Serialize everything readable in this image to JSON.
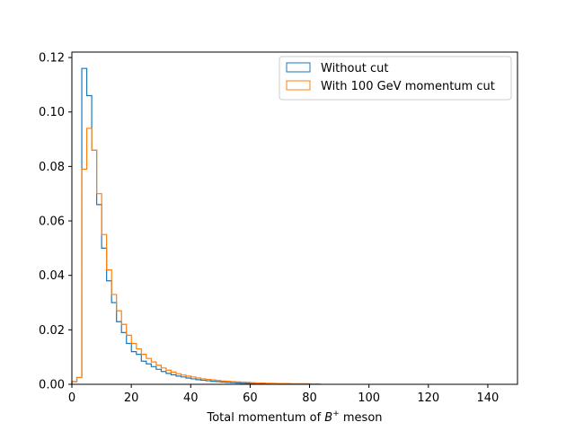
{
  "chart_data": {
    "type": "histogram-step",
    "xlabel_prefix": "Total momentum of ",
    "xlabel_symbol": "B",
    "xlabel_superscript": "+",
    "xlabel_suffix": " meson",
    "ylabel": "",
    "xlim": [
      0,
      150
    ],
    "ylim": [
      0,
      0.122
    ],
    "xticks": [
      0,
      20,
      40,
      60,
      80,
      100,
      120,
      140
    ],
    "yticks": [
      0.0,
      0.02,
      0.04,
      0.06,
      0.08,
      0.1,
      0.12
    ],
    "ytick_labels": [
      "0.00",
      "0.02",
      "0.04",
      "0.06",
      "0.08",
      "0.10",
      "0.12"
    ],
    "grid": false,
    "legend_position": "top-right",
    "series": [
      {
        "name": "Without cut",
        "color": "#1f77b4",
        "bin_start": 0,
        "bin_width": 1.67,
        "values": [
          0.001,
          0.0025,
          0.116,
          0.106,
          0.086,
          0.066,
          0.05,
          0.038,
          0.03,
          0.023,
          0.019,
          0.015,
          0.012,
          0.011,
          0.0085,
          0.0075,
          0.0065,
          0.0055,
          0.0047,
          0.004,
          0.0035,
          0.003,
          0.0027,
          0.0023,
          0.002,
          0.0017,
          0.0015,
          0.0013,
          0.0011,
          0.001,
          0.0008,
          0.0007,
          0.0006,
          0.0005,
          0.0004,
          0.0003,
          0.0003,
          0.0002,
          0.0002,
          0.0001
        ]
      },
      {
        "name": "With 100 GeV momentum cut",
        "color": "#ff7f0e",
        "bin_start": 0,
        "bin_width": 1.67,
        "values": [
          0.001,
          0.0025,
          0.079,
          0.094,
          0.086,
          0.07,
          0.055,
          0.042,
          0.033,
          0.027,
          0.022,
          0.018,
          0.015,
          0.013,
          0.011,
          0.0095,
          0.0082,
          0.007,
          0.006,
          0.0052,
          0.0045,
          0.0039,
          0.0034,
          0.003,
          0.0027,
          0.0023,
          0.002,
          0.0018,
          0.0016,
          0.0014,
          0.0012,
          0.0011,
          0.001,
          0.0009,
          0.0008,
          0.0007,
          0.0006,
          0.0005,
          0.0005,
          0.0004,
          0.0004,
          0.0003,
          0.0003,
          0.0003,
          0.0002,
          0.0002,
          0.0002,
          0.0002,
          0.0001,
          0.0001
        ]
      }
    ]
  }
}
